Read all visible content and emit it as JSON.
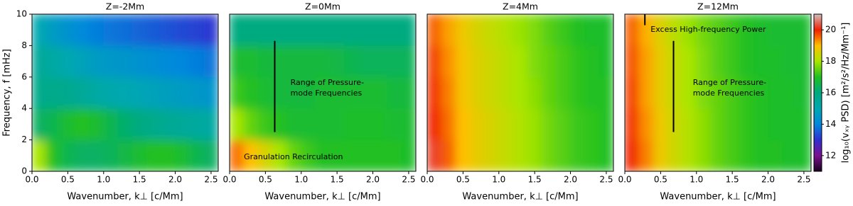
{
  "chart_data": [
    {
      "type": "heatmap",
      "title": "Z=-2Mm",
      "xlabel": "Wavenumber, k⊥ [c/Mm]",
      "ylabel": "Frequency, f [mHz]",
      "xlim": [
        0,
        2.6
      ],
      "xticks": [
        {
          "value": 0,
          "label": "0.0"
        },
        0.5,
        {
          "value": 1,
          "label": "1.0"
        },
        1.5,
        {
          "value": 2,
          "label": "2.0"
        },
        2.5
      ],
      "ylim": [
        0,
        10
      ],
      "yticks": [
        0,
        2,
        4,
        6,
        8,
        10
      ],
      "x": [
        0.1,
        0.3,
        0.5,
        0.7,
        0.9,
        1.1,
        1.3,
        1.5,
        1.7,
        1.9,
        2.1,
        2.3,
        2.5
      ],
      "y": [
        1,
        3,
        5,
        7,
        9
      ],
      "z": [
        [
          18.0,
          17.0,
          16.5,
          16.3,
          16.3,
          16.4,
          16.6,
          16.8,
          17.0,
          17.0,
          16.8,
          16.5,
          16.3
        ],
        [
          16.3,
          16.5,
          16.8,
          17.0,
          16.8,
          16.5,
          16.2,
          16.0,
          15.8,
          15.6,
          15.5,
          15.4,
          15.3
        ],
        [
          15.8,
          15.8,
          15.7,
          15.5,
          15.3,
          15.1,
          15.0,
          14.9,
          14.8,
          14.7,
          14.6,
          14.5,
          14.4
        ],
        [
          15.5,
          15.3,
          15.0,
          14.8,
          14.6,
          14.5,
          14.4,
          14.3,
          14.2,
          14.1,
          14.0,
          13.9,
          13.8
        ],
        [
          15.0,
          14.6,
          14.3,
          14.1,
          13.9,
          13.8,
          13.7,
          13.6,
          13.5,
          13.4,
          13.3,
          13.2,
          13.1
        ]
      ]
    },
    {
      "type": "heatmap",
      "title": "Z=0Mm",
      "xlabel": "Wavenumber, k⊥ [c/Mm]",
      "xlim": [
        0,
        2.6
      ],
      "xticks": [
        {
          "value": 0,
          "label": "0.0"
        },
        0.5,
        {
          "value": 1,
          "label": "1.0"
        },
        1.5,
        {
          "value": 2,
          "label": "2.0"
        },
        2.5
      ],
      "ylim": [
        0,
        10
      ],
      "x": [
        0.1,
        0.3,
        0.5,
        0.7,
        0.9,
        1.1,
        1.3,
        1.5,
        1.7,
        1.9,
        2.1,
        2.3,
        2.5
      ],
      "y": [
        1,
        3,
        5,
        7,
        9
      ],
      "z": [
        [
          19.5,
          19.0,
          18.5,
          18.0,
          17.5,
          17.2,
          17.0,
          17.0,
          17.0,
          17.0,
          17.0,
          17.0,
          16.9
        ],
        [
          18.0,
          17.5,
          17.2,
          17.0,
          16.8,
          16.8,
          16.8,
          16.8,
          16.9,
          16.9,
          16.9,
          16.8,
          16.8
        ],
        [
          17.2,
          17.0,
          16.8,
          16.7,
          16.7,
          16.7,
          16.8,
          16.8,
          16.8,
          16.8,
          16.8,
          16.7,
          16.7
        ],
        [
          16.8,
          16.8,
          16.7,
          16.7,
          16.7,
          16.7,
          16.7,
          16.6,
          16.5,
          16.4,
          16.4,
          16.4,
          16.4
        ],
        [
          16.0,
          16.0,
          16.0,
          16.0,
          16.0,
          16.0,
          16.0,
          16.0,
          16.0,
          16.0,
          16.0,
          16.0,
          16.0
        ]
      ],
      "vlines": [
        {
          "x": 0.63,
          "y": [
            2.5,
            8.3
          ]
        }
      ],
      "annotations": [
        {
          "lines": [
            "Range of Pressure-",
            "mode Frequencies"
          ],
          "x": 0.85,
          "y": 5.3
        },
        {
          "lines": [
            "Granulation Recirculation"
          ],
          "x": 0.2,
          "y": 0.9
        }
      ]
    },
    {
      "type": "heatmap",
      "title": "Z=4Mm",
      "xlabel": "Wavenumber, k⊥ [c/Mm]",
      "xlim": [
        0,
        2.6
      ],
      "xticks": [
        {
          "value": 0,
          "label": "0.0"
        },
        0.5,
        {
          "value": 1,
          "label": "1.0"
        },
        1.5,
        {
          "value": 2,
          "label": "2.0"
        },
        2.5
      ],
      "ylim": [
        0,
        10
      ],
      "x": [
        0.1,
        0.3,
        0.5,
        0.7,
        0.9,
        1.1,
        1.3,
        1.5,
        1.7,
        1.9,
        2.1,
        2.3,
        2.5
      ],
      "y": [
        1,
        3,
        5,
        7,
        9
      ],
      "z": [
        [
          20.2,
          19.6,
          19.0,
          18.7,
          18.5,
          18.3,
          18.1,
          17.9,
          17.6,
          17.4,
          17.2,
          17.1,
          17.0
        ],
        [
          20.0,
          19.5,
          19.0,
          18.7,
          18.5,
          18.3,
          18.1,
          17.9,
          17.6,
          17.4,
          17.2,
          17.1,
          17.0
        ],
        [
          19.9,
          19.4,
          18.9,
          18.6,
          18.4,
          18.2,
          18.0,
          17.8,
          17.5,
          17.3,
          17.1,
          17.0,
          17.0
        ],
        [
          19.8,
          19.3,
          18.9,
          18.6,
          18.4,
          18.2,
          18.0,
          17.7,
          17.5,
          17.3,
          17.1,
          17.0,
          16.9
        ],
        [
          19.6,
          19.2,
          18.8,
          18.5,
          18.3,
          18.1,
          17.9,
          17.7,
          17.4,
          17.2,
          17.0,
          16.9,
          16.9
        ]
      ]
    },
    {
      "type": "heatmap",
      "title": "Z=12Mm",
      "xlabel": "Wavenumber, k⊥ [c/Mm]",
      "xlim": [
        0,
        2.6
      ],
      "xticks": [
        {
          "value": 0,
          "label": "0.0"
        },
        0.5,
        {
          "value": 1,
          "label": "1.0"
        },
        1.5,
        {
          "value": 2,
          "label": "2.0"
        },
        2.5
      ],
      "ylim": [
        0,
        10
      ],
      "x": [
        0.1,
        0.3,
        0.5,
        0.7,
        0.9,
        1.1,
        1.3,
        1.5,
        1.7,
        1.9,
        2.1,
        2.3,
        2.5
      ],
      "y": [
        1,
        3,
        5,
        7,
        9
      ],
      "z": [
        [
          20.0,
          19.4,
          18.8,
          18.4,
          18.1,
          17.8,
          17.5,
          17.3,
          17.1,
          17.0,
          17.0,
          16.9,
          16.9
        ],
        [
          19.9,
          19.3,
          18.8,
          18.4,
          18.1,
          17.8,
          17.5,
          17.3,
          17.1,
          17.0,
          16.9,
          16.9,
          16.9
        ],
        [
          19.8,
          19.2,
          18.7,
          18.3,
          18.0,
          17.7,
          17.5,
          17.3,
          17.1,
          17.0,
          16.9,
          16.9,
          16.8
        ],
        [
          19.7,
          19.2,
          18.7,
          18.3,
          18.0,
          17.7,
          17.4,
          17.2,
          17.0,
          16.9,
          16.9,
          16.8,
          16.8
        ],
        [
          19.6,
          19.1,
          18.6,
          18.2,
          17.9,
          17.6,
          17.4,
          17.2,
          17.0,
          16.9,
          16.8,
          16.8,
          16.8
        ]
      ],
      "vlines": [
        {
          "x": 0.68,
          "y": [
            2.5,
            8.3
          ]
        },
        {
          "x": 0.28,
          "y": [
            9.3,
            10
          ]
        }
      ],
      "annotations": [
        {
          "lines": [
            "Range of Pressure-",
            "mode Frequencies"
          ],
          "x": 0.95,
          "y": 5.3
        },
        {
          "lines": [
            "Excess High-frequency Power"
          ],
          "x": 0.36,
          "y": 9.0
        }
      ],
      "colorbar": {
        "label": "log₁₀(vₓᵧ PSD) [m²/s²/Hz/Mm⁻¹]",
        "lim": [
          11,
          21
        ],
        "ticks": [
          12,
          14,
          16,
          18,
          20
        ],
        "colors": [
          "#1a0020",
          "#7a1090",
          "#3030d0",
          "#0088dd",
          "#00a8b0",
          "#00aa80",
          "#20c020",
          "#a8e600",
          "#ffc000",
          "#f02000",
          "#d0c0c0"
        ]
      }
    }
  ]
}
